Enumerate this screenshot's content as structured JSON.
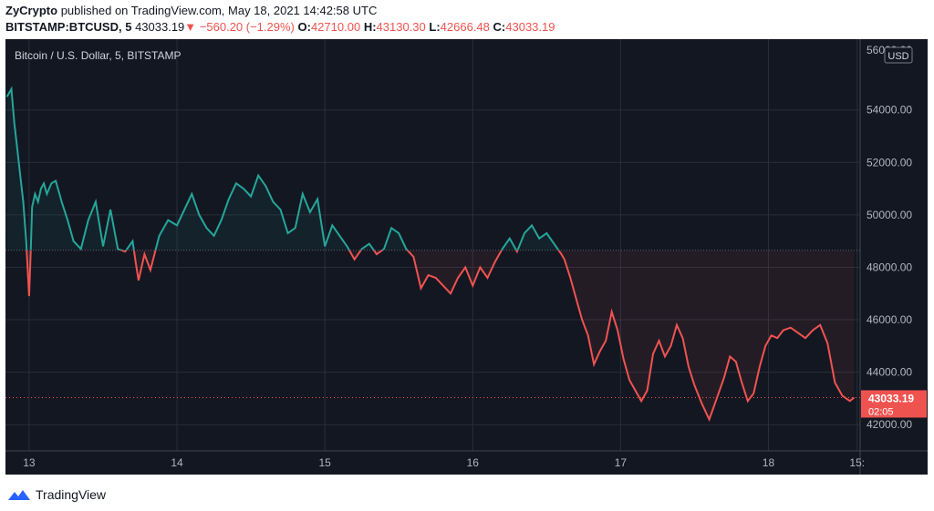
{
  "header": {
    "publisher": "ZyCrypto",
    "published_text": "published on TradingView.com, May 18, 2021 14:42:58 UTC",
    "symbol": "BITSTAMP:BTCUSD, 5",
    "last": "43033.19",
    "change_arrow": "▼",
    "change": "−560.20 (−1.29%)",
    "open_label": "O:",
    "open": "42710.00",
    "high_label": "H:",
    "high": "43130.30",
    "low_label": "L:",
    "low": "42666.48",
    "close_label": "C:",
    "close": "43033.19"
  },
  "colors": {
    "background": "#131722",
    "up": "#26a69a",
    "down": "#ef5350",
    "grid": "#2a2e39",
    "text": "#b2b5be"
  },
  "chart_data": {
    "type": "area",
    "title": "Bitcoin / U.S. Dollar, 5, BITSTAMP",
    "currency": "USD",
    "baseline": 48650,
    "last_price": "43033.19",
    "countdown": "02:05",
    "ylim": [
      41000,
      56700
    ],
    "y_ticks": [
      42000,
      44000,
      46000,
      48000,
      50000,
      52000,
      54000
    ],
    "y_tick_labels": [
      "42000.00",
      "44000.00",
      "46000.00",
      "48000.00",
      "50000.00",
      "52000.00",
      "54000.00"
    ],
    "y_top_label": "56000.00",
    "x_ticks": [
      "13",
      "14",
      "15",
      "16",
      "17",
      "18",
      "15:"
    ],
    "x_tick_pos": [
      0.0,
      1.0,
      2.0,
      3.0,
      4.0,
      5.0,
      5.6
    ],
    "xlim": [
      -0.16,
      5.62
    ],
    "grid": true,
    "x": [
      -0.15,
      -0.12,
      -0.1,
      -0.08,
      -0.06,
      -0.04,
      -0.02,
      0.0,
      0.01,
      0.02,
      0.04,
      0.06,
      0.08,
      0.1,
      0.12,
      0.15,
      0.18,
      0.22,
      0.26,
      0.3,
      0.35,
      0.4,
      0.45,
      0.5,
      0.55,
      0.6,
      0.65,
      0.7,
      0.72,
      0.74,
      0.78,
      0.82,
      0.88,
      0.94,
      1.0,
      1.05,
      1.1,
      1.15,
      1.2,
      1.25,
      1.3,
      1.35,
      1.4,
      1.45,
      1.5,
      1.55,
      1.6,
      1.65,
      1.7,
      1.75,
      1.8,
      1.85,
      1.9,
      1.95,
      2.0,
      2.05,
      2.1,
      2.15,
      2.2,
      2.25,
      2.3,
      2.35,
      2.4,
      2.45,
      2.5,
      2.55,
      2.6,
      2.65,
      2.7,
      2.75,
      2.8,
      2.85,
      2.9,
      2.95,
      3.0,
      3.05,
      3.1,
      3.15,
      3.2,
      3.25,
      3.3,
      3.35,
      3.4,
      3.45,
      3.5,
      3.55,
      3.6,
      3.62,
      3.66,
      3.7,
      3.74,
      3.78,
      3.82,
      3.86,
      3.9,
      3.94,
      3.98,
      4.02,
      4.06,
      4.1,
      4.14,
      4.18,
      4.22,
      4.26,
      4.3,
      4.34,
      4.38,
      4.42,
      4.46,
      4.5,
      4.55,
      4.6,
      4.65,
      4.7,
      4.74,
      4.78,
      4.82,
      4.86,
      4.9,
      4.94,
      4.98,
      5.02,
      5.06,
      5.1,
      5.15,
      5.2,
      5.25,
      5.3,
      5.35,
      5.4,
      5.45,
      5.5,
      5.55,
      5.58
    ],
    "y": [
      54500,
      54800,
      53500,
      52500,
      51500,
      50500,
      49000,
      46900,
      48500,
      50300,
      50800,
      50500,
      51000,
      51200,
      50800,
      51200,
      51300,
      50500,
      49800,
      49000,
      48700,
      49800,
      50500,
      48800,
      50200,
      48700,
      48600,
      49000,
      48200,
      47500,
      48500,
      47900,
      49200,
      49800,
      49600,
      50200,
      50800,
      50000,
      49500,
      49200,
      49800,
      50600,
      51200,
      51000,
      50700,
      51500,
      51100,
      50500,
      50200,
      49300,
      49500,
      50800,
      50100,
      50600,
      48800,
      49600,
      49200,
      48800,
      48300,
      48700,
      48900,
      48500,
      48700,
      49500,
      49300,
      48700,
      48400,
      47200,
      47700,
      47600,
      47300,
      47000,
      47600,
      48000,
      47300,
      48000,
      47600,
      48200,
      48700,
      49100,
      48600,
      49300,
      49600,
      49100,
      49300,
      48900,
      48500,
      48300,
      47600,
      46800,
      46000,
      45400,
      44300,
      44800,
      45200,
      46300,
      45600,
      44500,
      43700,
      43300,
      42900,
      43300,
      44700,
      45200,
      44600,
      45000,
      45800,
      45300,
      44200,
      43500,
      42800,
      42200,
      43000,
      43800,
      44600,
      44400,
      43600,
      42900,
      43200,
      44200,
      45000,
      45400,
      45300,
      45600,
      45700,
      45500,
      45300,
      45600,
      45800,
      45100,
      43600,
      43100,
      42900,
      43033
    ]
  }
}
